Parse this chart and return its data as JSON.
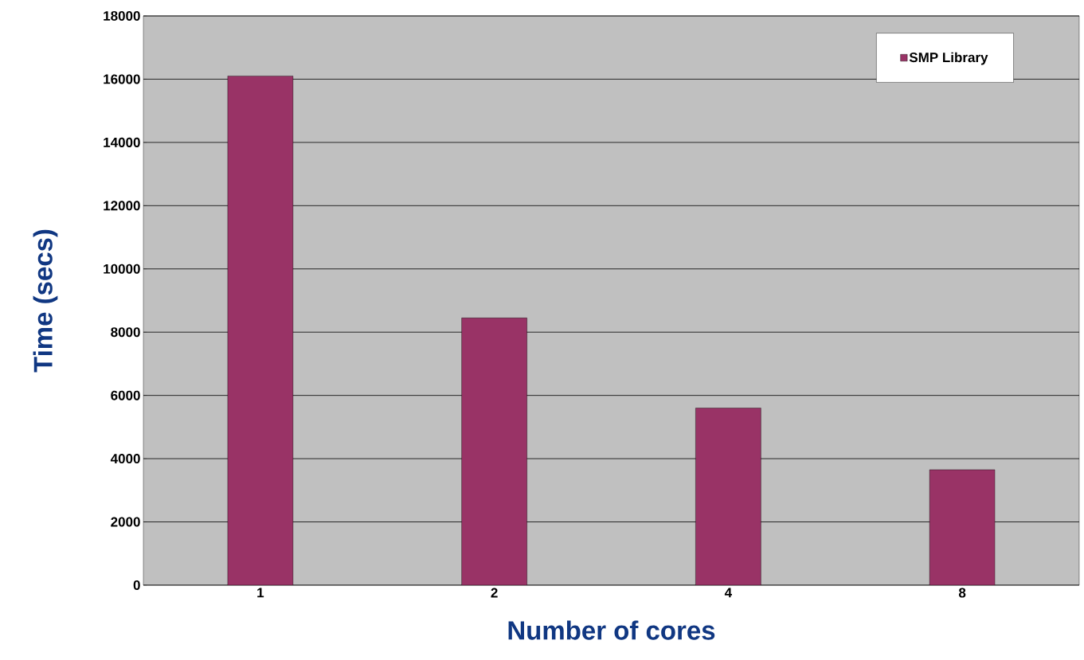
{
  "chart_data": {
    "type": "bar",
    "xlabel": "Number of cores",
    "ylabel": "Time (secs)",
    "categories": [
      "1",
      "2",
      "4",
      "8"
    ],
    "series": [
      {
        "name": "SMP Library",
        "color": "#993366",
        "values": [
          16100,
          8450,
          5600,
          3650
        ]
      }
    ],
    "ylim": [
      0,
      18000
    ],
    "yticks": [
      0,
      2000,
      4000,
      6000,
      8000,
      10000,
      12000,
      14000,
      16000,
      18000
    ],
    "grid": "y",
    "legend": "top right"
  }
}
